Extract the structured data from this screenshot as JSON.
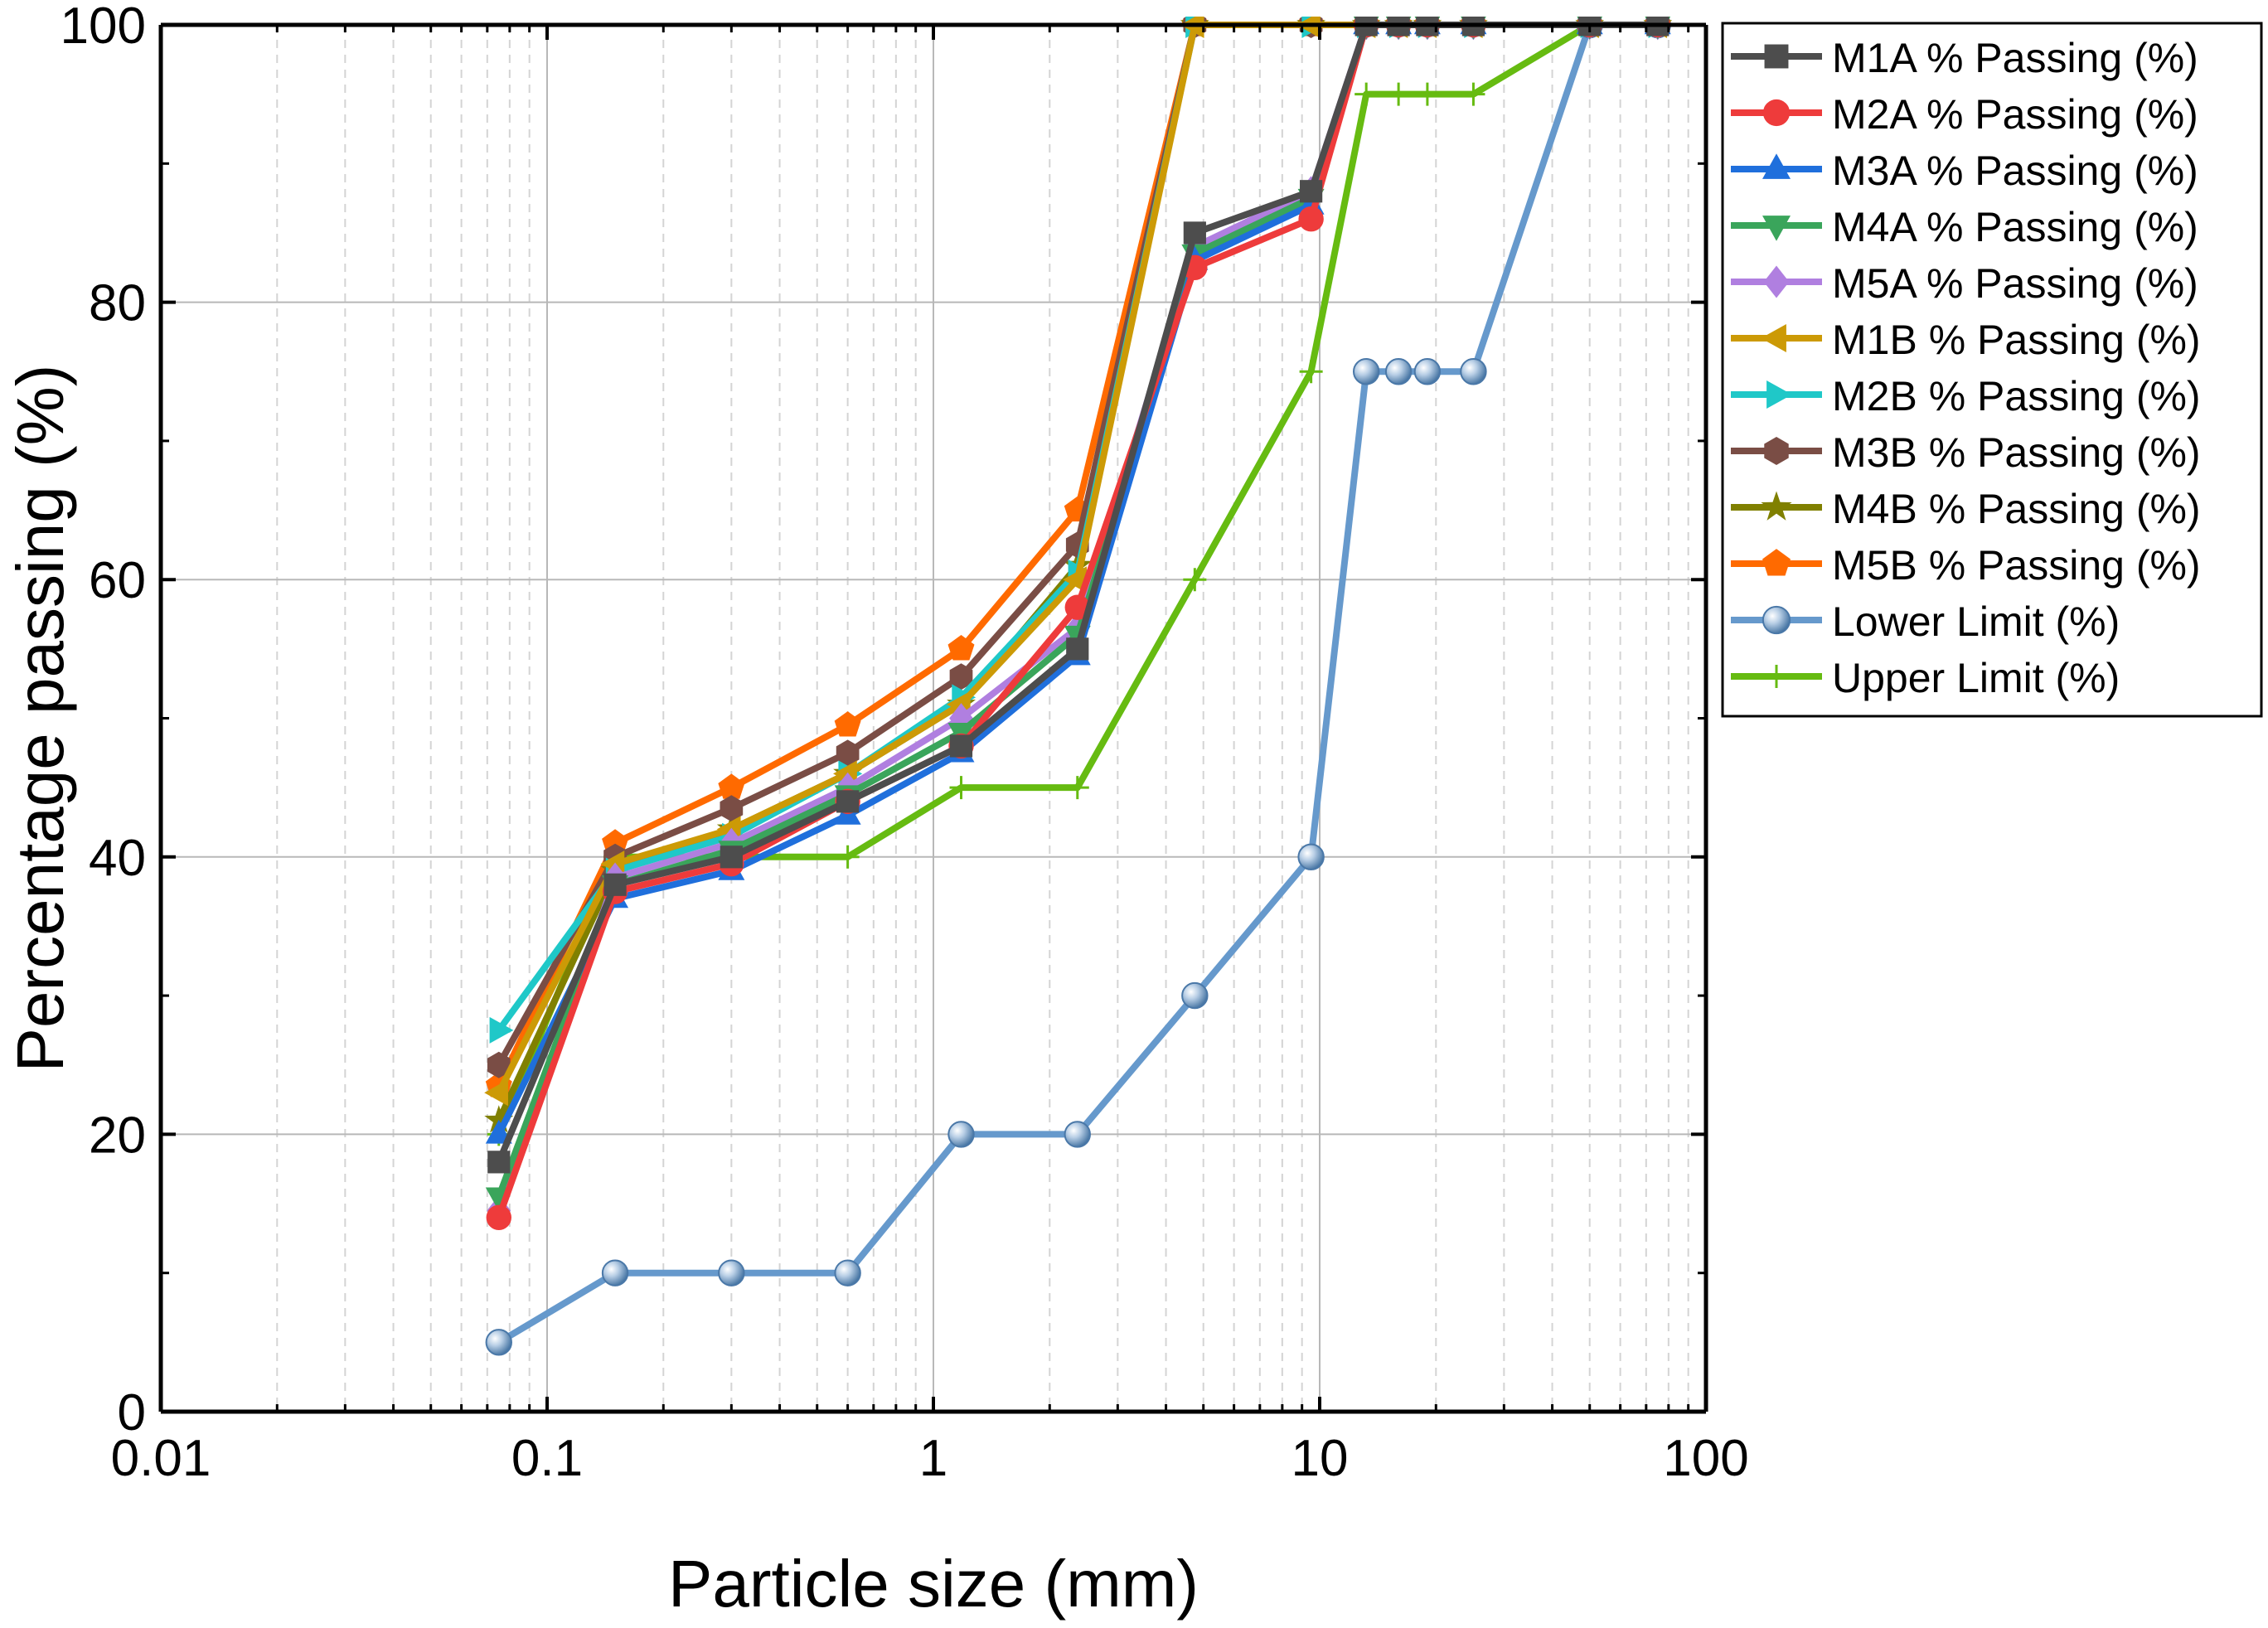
{
  "chart_data": {
    "type": "line",
    "xscale": "log",
    "xlabel": "Particle size (mm)",
    "ylabel": "Percentage passing (%)",
    "xlim": [
      0.01,
      100
    ],
    "ylim": [
      0,
      100
    ],
    "grid": true,
    "legend_position": "outside-right",
    "x_ticks": [
      "0.01",
      "0.1",
      "1",
      "10",
      "100"
    ],
    "y_ticks": [
      "0",
      "20",
      "40",
      "60",
      "80",
      "100"
    ],
    "series": [
      {
        "name": "M1A % Passing (%)",
        "color": "#4d4d4d",
        "marker": "square",
        "x": [
          0.075,
          0.15,
          0.3,
          0.6,
          1.18,
          2.36,
          4.75,
          9.5,
          13.2,
          16,
          19,
          25,
          50,
          75
        ],
        "y": [
          18,
          38,
          40,
          44,
          48,
          55,
          85,
          88,
          100,
          100,
          100,
          100,
          100,
          100
        ]
      },
      {
        "name": "M2A % Passing (%)",
        "color": "#ee3b3b",
        "marker": "circle",
        "x": [
          0.075,
          0.15,
          0.3,
          0.6,
          1.18,
          2.36,
          4.75,
          9.5,
          13.2,
          16,
          19,
          25,
          50,
          75
        ],
        "y": [
          14,
          37.5,
          39.5,
          44,
          48,
          58,
          82.5,
          86,
          100,
          100,
          100,
          100,
          100,
          100
        ]
      },
      {
        "name": "M3A % Passing (%)",
        "color": "#1f6fdc",
        "marker": "triangle-up",
        "x": [
          0.075,
          0.15,
          0.3,
          0.6,
          1.18,
          2.36,
          4.75,
          9.5,
          13.2,
          16,
          19,
          25,
          50,
          75
        ],
        "y": [
          20,
          37,
          39,
          43,
          47.5,
          54.5,
          83,
          87,
          100,
          100,
          100,
          100,
          100,
          100
        ]
      },
      {
        "name": "M4A % Passing (%)",
        "color": "#3aa55b",
        "marker": "triangle-down",
        "x": [
          0.075,
          0.15,
          0.3,
          0.6,
          1.18,
          2.36,
          4.75,
          9.5,
          13.2,
          16,
          19,
          25,
          50,
          75
        ],
        "y": [
          15.5,
          38,
          40.5,
          44.5,
          49,
          56,
          83.5,
          87.5,
          100,
          100,
          100,
          100,
          100,
          100
        ]
      },
      {
        "name": "M5A % Passing (%)",
        "color": "#b07fe0",
        "marker": "diamond",
        "x": [
          0.075,
          0.15,
          0.3,
          0.6,
          1.18,
          2.36,
          4.75,
          9.5,
          13.2,
          16,
          19,
          25,
          50,
          75
        ],
        "y": [
          14.5,
          38.5,
          41,
          45,
          50,
          56.5,
          84,
          88,
          100,
          100,
          100,
          100,
          100,
          100
        ]
      },
      {
        "name": "M1B % Passing (%)",
        "color": "#cc9a06",
        "marker": "triangle-left",
        "x": [
          0.075,
          0.15,
          0.3,
          0.6,
          1.18,
          2.36,
          4.75,
          9.5,
          13.2,
          16,
          19,
          25,
          50,
          75
        ],
        "y": [
          23,
          39.5,
          42,
          46,
          51,
          60,
          100,
          100,
          100,
          100,
          100,
          100,
          100,
          100
        ]
      },
      {
        "name": "M2B % Passing (%)",
        "color": "#1fc8c8",
        "marker": "triangle-right",
        "x": [
          0.075,
          0.15,
          0.3,
          0.6,
          1.18,
          2.36,
          4.75,
          9.5,
          13.2,
          16,
          19,
          25,
          50,
          75
        ],
        "y": [
          27.5,
          39,
          41.5,
          46,
          51.5,
          60.5,
          100,
          100,
          100,
          100,
          100,
          100,
          100,
          100
        ]
      },
      {
        "name": "M3B % Passing (%)",
        "color": "#7a4d45",
        "marker": "hexagon",
        "x": [
          0.075,
          0.15,
          0.3,
          0.6,
          1.18,
          2.36,
          4.75,
          9.5,
          13.2,
          16,
          19,
          25,
          50,
          75
        ],
        "y": [
          25,
          40,
          43.5,
          47.5,
          53,
          62.5,
          100,
          100,
          100,
          100,
          100,
          100,
          100,
          100
        ]
      },
      {
        "name": "M4B % Passing (%)",
        "color": "#808000",
        "marker": "star",
        "x": [
          0.075,
          0.15,
          0.3,
          0.6,
          1.18,
          2.36,
          4.75,
          9.5,
          13.2,
          16,
          19,
          25,
          50,
          75
        ],
        "y": [
          21,
          39,
          42,
          46,
          51,
          61,
          100,
          100,
          100,
          100,
          100,
          100,
          100,
          100
        ]
      },
      {
        "name": "M5B % Passing (%)",
        "color": "#ff6a00",
        "marker": "pentagon",
        "x": [
          0.075,
          0.15,
          0.3,
          0.6,
          1.18,
          2.36,
          4.75,
          9.5,
          13.2,
          16,
          19,
          25,
          50,
          75
        ],
        "y": [
          23.5,
          41,
          45,
          49.5,
          55,
          65,
          100,
          100,
          100,
          100,
          100,
          100,
          100,
          100
        ]
      },
      {
        "name": "Lower Limit (%)",
        "color": "#6699cc",
        "marker": "sphere",
        "x": [
          0.075,
          0.15,
          0.3,
          0.6,
          1.18,
          2.36,
          4.75,
          9.5,
          13.2,
          16,
          19,
          25,
          50,
          75
        ],
        "y": [
          5,
          10,
          10,
          10,
          20,
          20,
          30,
          40,
          75,
          75,
          75,
          75,
          100,
          100
        ]
      },
      {
        "name": "Upper Limit (%)",
        "color": "#66bb11",
        "marker": "plus",
        "x": [
          0.075,
          0.15,
          0.3,
          0.6,
          1.18,
          2.36,
          4.75,
          9.5,
          13.2,
          16,
          19,
          25,
          50,
          75
        ],
        "y": [
          20,
          40,
          40,
          40,
          45,
          45,
          60,
          75,
          95,
          95,
          95,
          95,
          100,
          100
        ]
      }
    ]
  }
}
